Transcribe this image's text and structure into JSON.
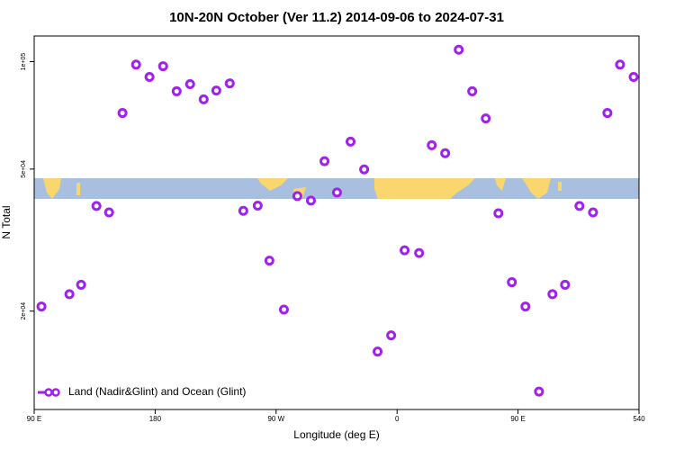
{
  "chart_data": {
    "type": "scatter",
    "title": "10N-20N October (Ver 11.2)   2014-09-06 to 2024-07-31",
    "x_label": "Longitude (deg E)",
    "y_label": "N Total",
    "log_y": true,
    "legend": "bottomleft",
    "x": [
      95.4,
      116.2,
      124.9,
      136.3,
      145.7,
      155.7,
      165.8,
      175.8,
      185.9,
      196.0,
      206.0,
      216.1,
      225.5,
      235.5,
      245.6,
      256.3,
      265.0,
      275.8,
      285.8,
      295.9,
      306.0,
      315.3,
      325.4,
      335.5,
      345.5,
      355.6,
      365.6,
      376.4,
      385.8,
      395.8,
      405.9,
      415.9,
      426.0,
      435.4,
      445.4,
      455.5,
      465.6,
      475.6,
      485.0,
      495.7,
      505.8,
      516.5,
      525.9,
      536.0
    ],
    "series": [
      {
        "name": "Land (Nadir&Glint) and Ocean (Glint)",
        "color": "#a020f0",
        "values": [
          20600,
          22300,
          23700,
          39400,
          37800,
          71800,
          98100,
          90600,
          97100,
          82600,
          86500,
          78400,
          83000,
          86900,
          38200,
          39500,
          27700,
          20200,
          42000,
          40800,
          52600,
          43000,
          59700,
          49900,
          15400,
          17100,
          29600,
          29100,
          58300,
          55400,
          108000,
          82600,
          69300,
          37600,
          24100,
          20600,
          11900,
          22300,
          23700,
          39400,
          37800,
          71800,
          98100,
          90600
        ]
      }
    ],
    "xlim": [
      90,
      540
    ],
    "xticks": [
      {
        "value": 90,
        "label": "90 E"
      },
      180,
      {
        "value": 270,
        "label": "90 W"
      },
      {
        "value": 360,
        "label": "0"
      },
      {
        "value": 450,
        "label": "90 E"
      },
      540
    ],
    "ylim": [
      10600,
      118000
    ],
    "yticks": [
      {
        "value": 20000,
        "label": "2e+04"
      },
      {
        "value": 50000,
        "label": "5e+04"
      },
      {
        "value": 100000,
        "label": "1e+05"
      }
    ]
  }
}
